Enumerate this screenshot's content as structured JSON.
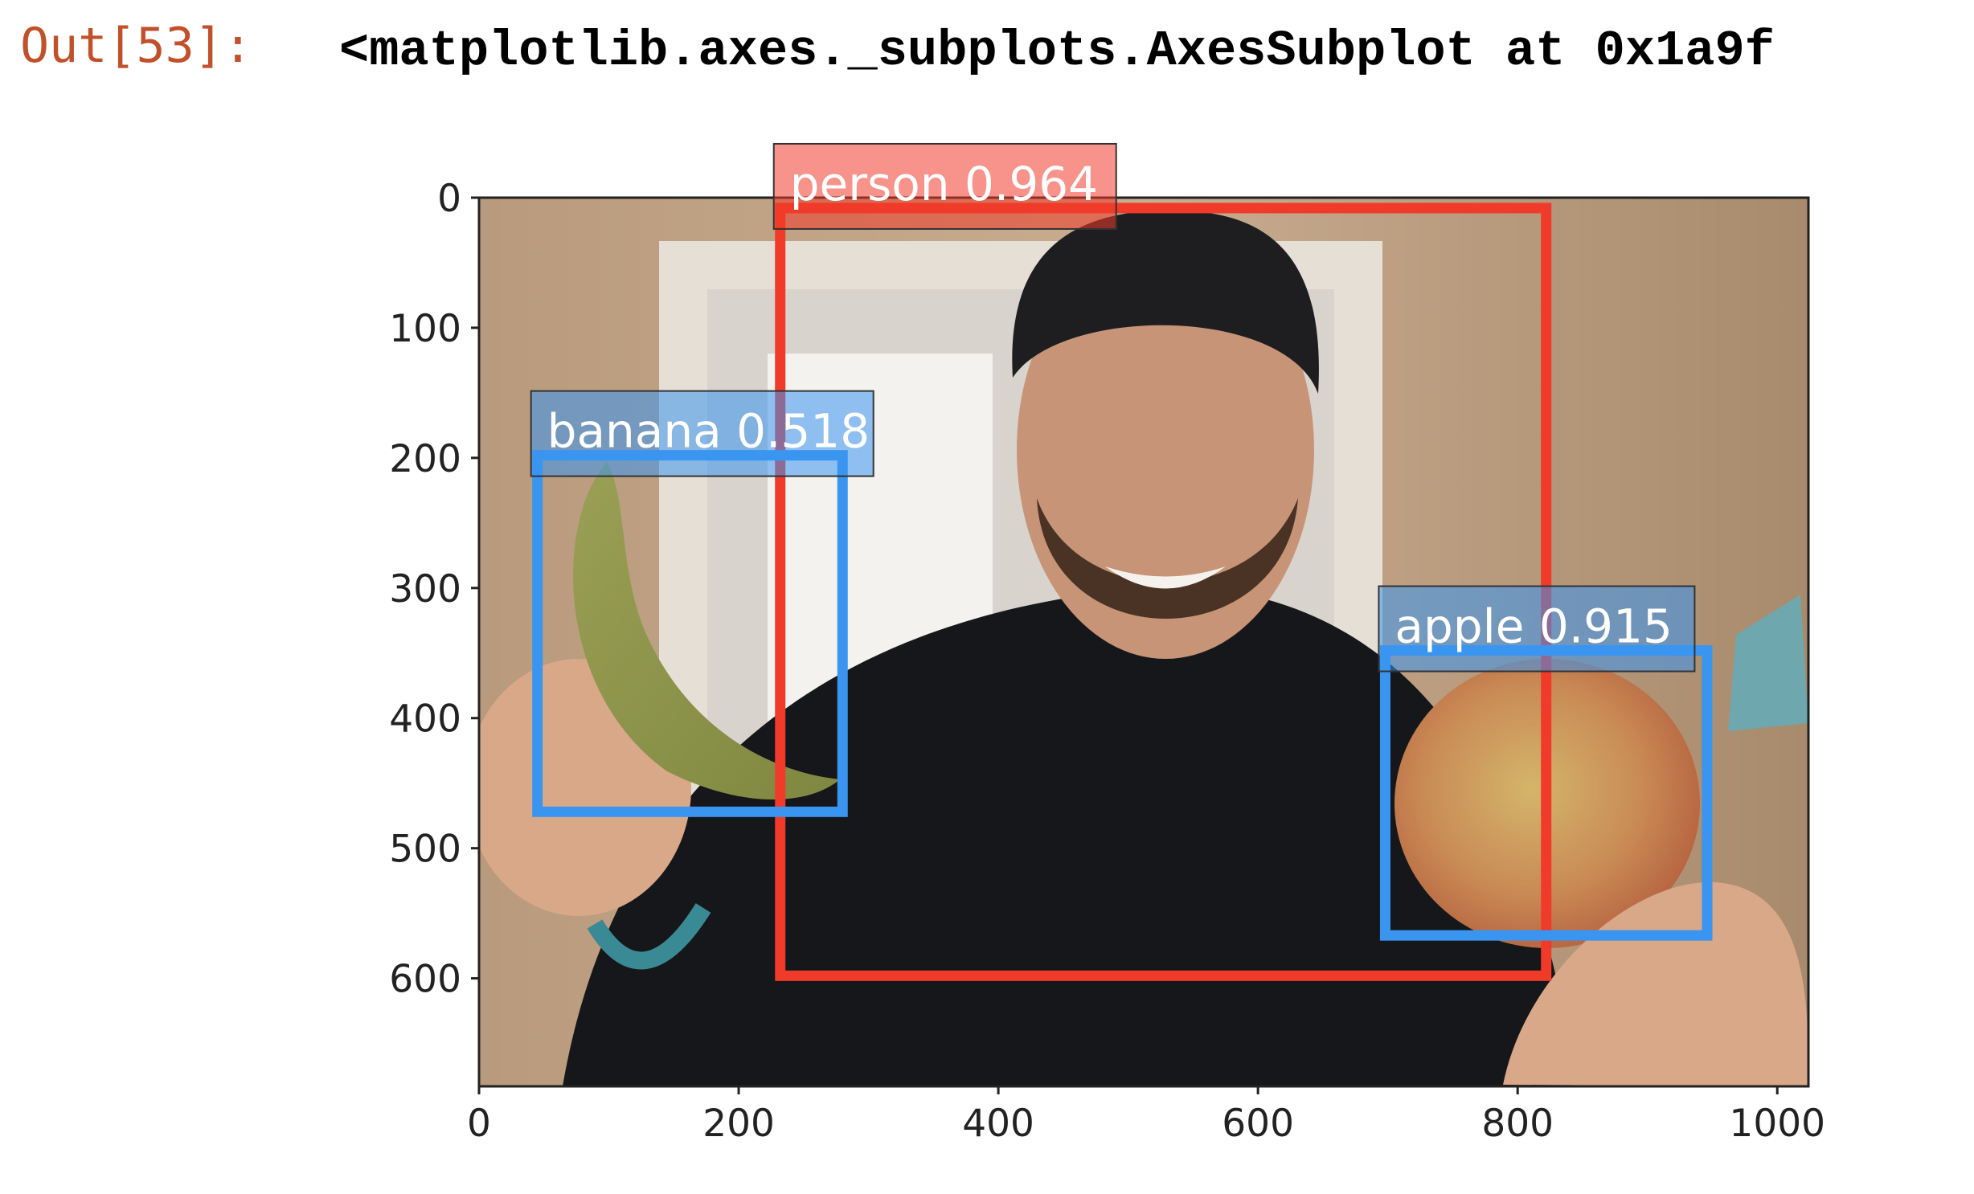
{
  "cell": {
    "prompt": "Out[53]:",
    "output_text": "<matplotlib.axes._subplots.AxesSubplot at 0x1a9f"
  },
  "image_description": "photo of smiling man in black hoodie and cap holding a banana and an apple in a room",
  "colors": {
    "person": "#f03a2a",
    "fruit": "#3a95f0",
    "axes": "#222222"
  },
  "chart_data": {
    "type": "image-with-bounding-boxes",
    "x_ticks": [
      0,
      200,
      400,
      600,
      800,
      1000
    ],
    "y_ticks": [
      0,
      100,
      200,
      300,
      400,
      500,
      600
    ],
    "xlim": [
      0,
      1024
    ],
    "ylim": [
      683,
      0
    ],
    "detections": [
      {
        "label": "person 0.964",
        "class": "person",
        "score": 0.964,
        "x0": 232,
        "y0": 8,
        "x1": 822,
        "y1": 598,
        "color": "#f03a2a"
      },
      {
        "label": "banana 0.518",
        "class": "banana",
        "score": 0.518,
        "x0": 45,
        "y0": 198,
        "x1": 280,
        "y1": 472,
        "color": "#3a95f0"
      },
      {
        "label": "apple 0.915",
        "class": "apple",
        "score": 0.915,
        "x0": 698,
        "y0": 348,
        "x1": 946,
        "y1": 567,
        "color": "#3a95f0"
      }
    ]
  }
}
